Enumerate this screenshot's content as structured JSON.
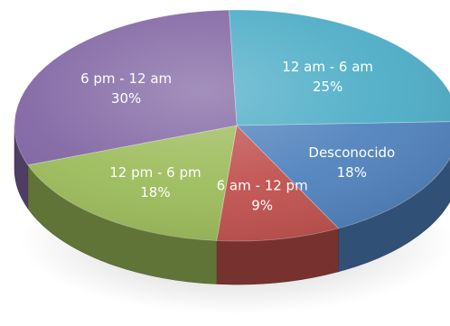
{
  "chart_data": {
    "type": "pie",
    "style": "3d",
    "legend": "none",
    "slices": [
      {
        "label": "12 am - 6 am",
        "value": 25,
        "value_label": "25%",
        "color": "#4bacc6"
      },
      {
        "label": "Desconocido",
        "value": 18,
        "value_label": "18%",
        "color": "#4f81bd"
      },
      {
        "label": "6 am - 12 pm",
        "value": 9,
        "value_label": "9%",
        "color": "#c0504d"
      },
      {
        "label": "12 pm - 6 pm",
        "value": 18,
        "value_label": "18%",
        "color": "#9bbb59"
      },
      {
        "label": "6 pm - 12 am",
        "value": 30,
        "value_label": "30%",
        "color": "#8064a2"
      }
    ]
  }
}
